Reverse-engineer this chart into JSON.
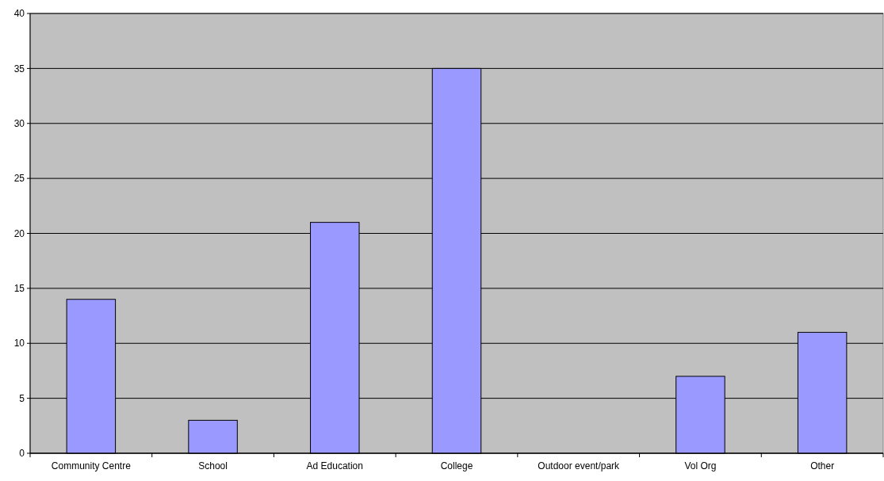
{
  "chart_data": {
    "type": "bar",
    "categories": [
      "Community Centre",
      "School",
      "Ad Education",
      "College",
      "Outdoor event/park",
      "Vol Org",
      "Other"
    ],
    "values": [
      14,
      3,
      21,
      35,
      0,
      7,
      11
    ],
    "color": "#9999ff",
    "ylim": [
      0,
      40
    ],
    "yticks": [
      0,
      5,
      10,
      15,
      20,
      25,
      30,
      35,
      40
    ],
    "grid": "y"
  }
}
